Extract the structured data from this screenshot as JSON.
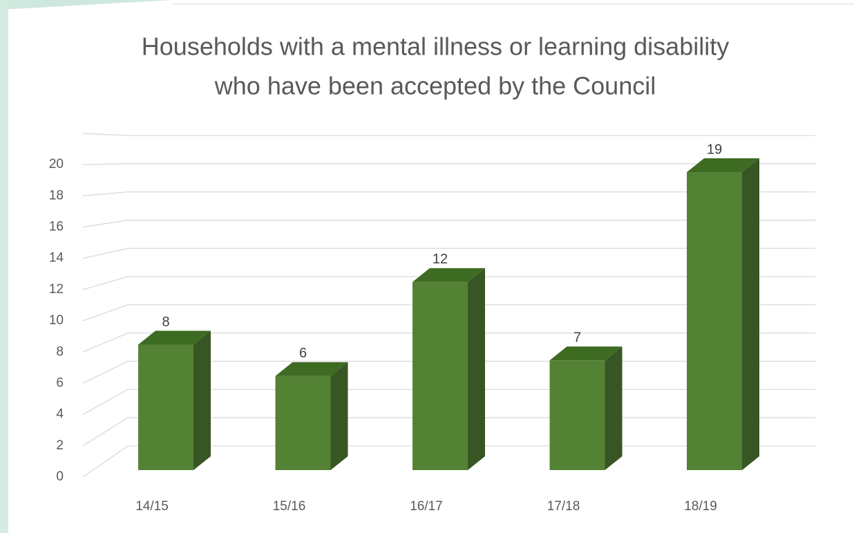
{
  "chart_data": {
    "type": "bar3d",
    "title": [
      "Households with a mental illness or learning disability",
      "who have been accepted by the Council"
    ],
    "categories": [
      "14/15",
      "15/16",
      "16/17",
      "17/18",
      "18/19"
    ],
    "values": [
      8,
      6,
      12,
      7,
      19
    ],
    "color": "#548235",
    "ylim": [
      0,
      22
    ],
    "yticks": [
      0,
      2,
      4,
      6,
      8,
      10,
      12,
      14,
      16,
      18,
      20
    ],
    "grid": true
  }
}
